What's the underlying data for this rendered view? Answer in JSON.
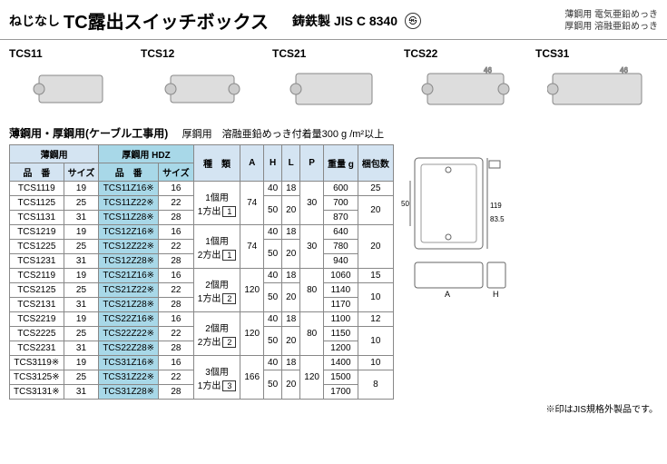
{
  "header": {
    "pre": "ねじなし",
    "main": "TC露出スイッチボックス",
    "std": "鋳鉄製 JIS C 8340",
    "ps": "PS E",
    "note1": "薄鋼用 電気亜鉛めっき",
    "note2": "厚鋼用 溶融亜鉛めっき"
  },
  "products": [
    "TCS11",
    "TCS12",
    "TCS21",
    "TCS22",
    "TCS31"
  ],
  "section": {
    "title": "薄鋼用・厚鋼用(ケーブル工事用)",
    "note": "厚鋼用　溶融亜鉛めっき付着量300 g /m²以上"
  },
  "table": {
    "group1": "薄鋼用",
    "group2": "厚鋼用 HDZ",
    "col_hin": "品　番",
    "col_size": "サイズ",
    "col_type": "種　類",
    "col_a": "A",
    "col_h": "H",
    "col_l": "L",
    "col_p": "P",
    "col_wt": "重量 g",
    "col_pk": "梱包数",
    "rows": [
      {
        "hin": "TCS1119",
        "sz": "19",
        "hdz": "TCS11Z16※",
        "hsz": "16",
        "type": "1個用\n1方出",
        "tnum": "1",
        "a": "74",
        "h": "40",
        "l": "18",
        "p": "30",
        "wt": "600",
        "pk": "25"
      },
      {
        "hin": "TCS1125",
        "sz": "25",
        "hdz": "TCS11Z22※",
        "hsz": "22",
        "type": "",
        "tnum": "",
        "a": "",
        "h": "50",
        "l": "20",
        "p": "",
        "wt": "700",
        "pk": "20"
      },
      {
        "hin": "TCS1131",
        "sz": "31",
        "hdz": "TCS11Z28※",
        "hsz": "28",
        "type": "",
        "tnum": "",
        "a": "",
        "h": "",
        "l": "",
        "p": "",
        "wt": "870",
        "pk": ""
      },
      {
        "hin": "TCS1219",
        "sz": "19",
        "hdz": "TCS12Z16※",
        "hsz": "16",
        "type": "1個用\n2方出",
        "tnum": "1",
        "a": "74",
        "h": "40",
        "l": "18",
        "p": "30",
        "wt": "640",
        "pk": "20"
      },
      {
        "hin": "TCS1225",
        "sz": "25",
        "hdz": "TCS12Z22※",
        "hsz": "22",
        "type": "",
        "tnum": "",
        "a": "",
        "h": "50",
        "l": "20",
        "p": "",
        "wt": "780",
        "pk": ""
      },
      {
        "hin": "TCS1231",
        "sz": "31",
        "hdz": "TCS12Z28※",
        "hsz": "28",
        "type": "",
        "tnum": "",
        "a": "",
        "h": "",
        "l": "",
        "p": "",
        "wt": "940",
        "pk": ""
      },
      {
        "hin": "TCS2119",
        "sz": "19",
        "hdz": "TCS21Z16※",
        "hsz": "16",
        "type": "2個用\n1方出",
        "tnum": "2",
        "a": "120",
        "h": "40",
        "l": "18",
        "p": "80",
        "wt": "1060",
        "pk": "15"
      },
      {
        "hin": "TCS2125",
        "sz": "25",
        "hdz": "TCS21Z22※",
        "hsz": "22",
        "type": "",
        "tnum": "",
        "a": "",
        "h": "50",
        "l": "20",
        "p": "",
        "wt": "1140",
        "pk": "10"
      },
      {
        "hin": "TCS2131",
        "sz": "31",
        "hdz": "TCS21Z28※",
        "hsz": "28",
        "type": "",
        "tnum": "",
        "a": "",
        "h": "",
        "l": "",
        "p": "",
        "wt": "1170",
        "pk": ""
      },
      {
        "hin": "TCS2219",
        "sz": "19",
        "hdz": "TCS22Z16※",
        "hsz": "16",
        "type": "2個用\n2方出",
        "tnum": "2",
        "a": "120",
        "h": "40",
        "l": "18",
        "p": "80",
        "wt": "1100",
        "pk": "12"
      },
      {
        "hin": "TCS2225",
        "sz": "25",
        "hdz": "TCS22Z22※",
        "hsz": "22",
        "type": "",
        "tnum": "",
        "a": "",
        "h": "50",
        "l": "20",
        "p": "",
        "wt": "1150",
        "pk": "10"
      },
      {
        "hin": "TCS2231",
        "sz": "31",
        "hdz": "TCS22Z28※",
        "hsz": "28",
        "type": "",
        "tnum": "",
        "a": "",
        "h": "",
        "l": "",
        "p": "",
        "wt": "1200",
        "pk": ""
      },
      {
        "hin": "TCS3119※",
        "sz": "19",
        "hdz": "TCS31Z16※",
        "hsz": "16",
        "type": "3個用\n1方出",
        "tnum": "3",
        "a": "166",
        "h": "40",
        "l": "18",
        "p": "120",
        "wt": "1400",
        "pk": "10"
      },
      {
        "hin": "TCS3125※",
        "sz": "25",
        "hdz": "TCS31Z22※",
        "hsz": "22",
        "type": "",
        "tnum": "",
        "a": "",
        "h": "50",
        "l": "20",
        "p": "",
        "wt": "1500",
        "pk": "8"
      },
      {
        "hin": "TCS3131※",
        "sz": "31",
        "hdz": "TCS31Z28※",
        "hsz": "28",
        "type": "",
        "tnum": "",
        "a": "",
        "h": "",
        "l": "",
        "p": "",
        "wt": "1700",
        "pk": ""
      }
    ]
  },
  "diagram": {
    "d1": "50",
    "d2": "119",
    "d3": "83.5",
    "da": "A",
    "dh": "H"
  },
  "footnote": "※印はJIS規格外製品です。"
}
